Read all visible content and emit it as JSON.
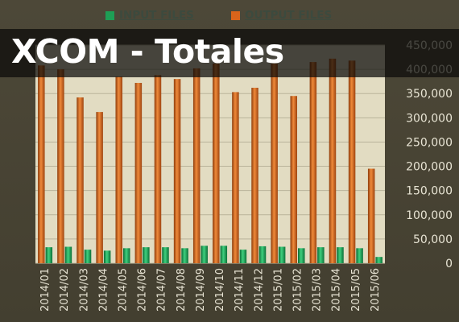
{
  "title": "XCOM - Totales",
  "chart_data": {
    "type": "bar",
    "categories": [
      "2014/01",
      "2014/02",
      "2014/03",
      "2014/04",
      "2014/05",
      "2014/06",
      "2014/07",
      "2014/08",
      "2014/09",
      "2014/10",
      "2014/11",
      "2014/12",
      "2015/01",
      "2015/02",
      "2015/03",
      "2015/04",
      "2015/05",
      "2015/06"
    ],
    "series": [
      {
        "name": "INPUT FILES",
        "color": "#1e9e55",
        "values": [
          33000,
          34000,
          28000,
          26000,
          31000,
          33000,
          33000,
          31000,
          36000,
          36000,
          28000,
          35000,
          34000,
          31000,
          33000,
          33000,
          31000,
          13000
        ]
      },
      {
        "name": "OUTPUT FILES",
        "color": "#d8641b",
        "values": [
          408000,
          400000,
          342000,
          312000,
          385000,
          372000,
          388000,
          380000,
          402000,
          412000,
          353000,
          362000,
          412000,
          345000,
          415000,
          422000,
          418000,
          195000
        ]
      }
    ],
    "yticks": [
      "0",
      "50,000",
      "100,000",
      "150,000",
      "200,000",
      "250,000",
      "300,000",
      "350,000",
      "400,000",
      "450,000"
    ],
    "ylim": [
      0,
      450000
    ],
    "legend_position": "top",
    "grid": true
  }
}
